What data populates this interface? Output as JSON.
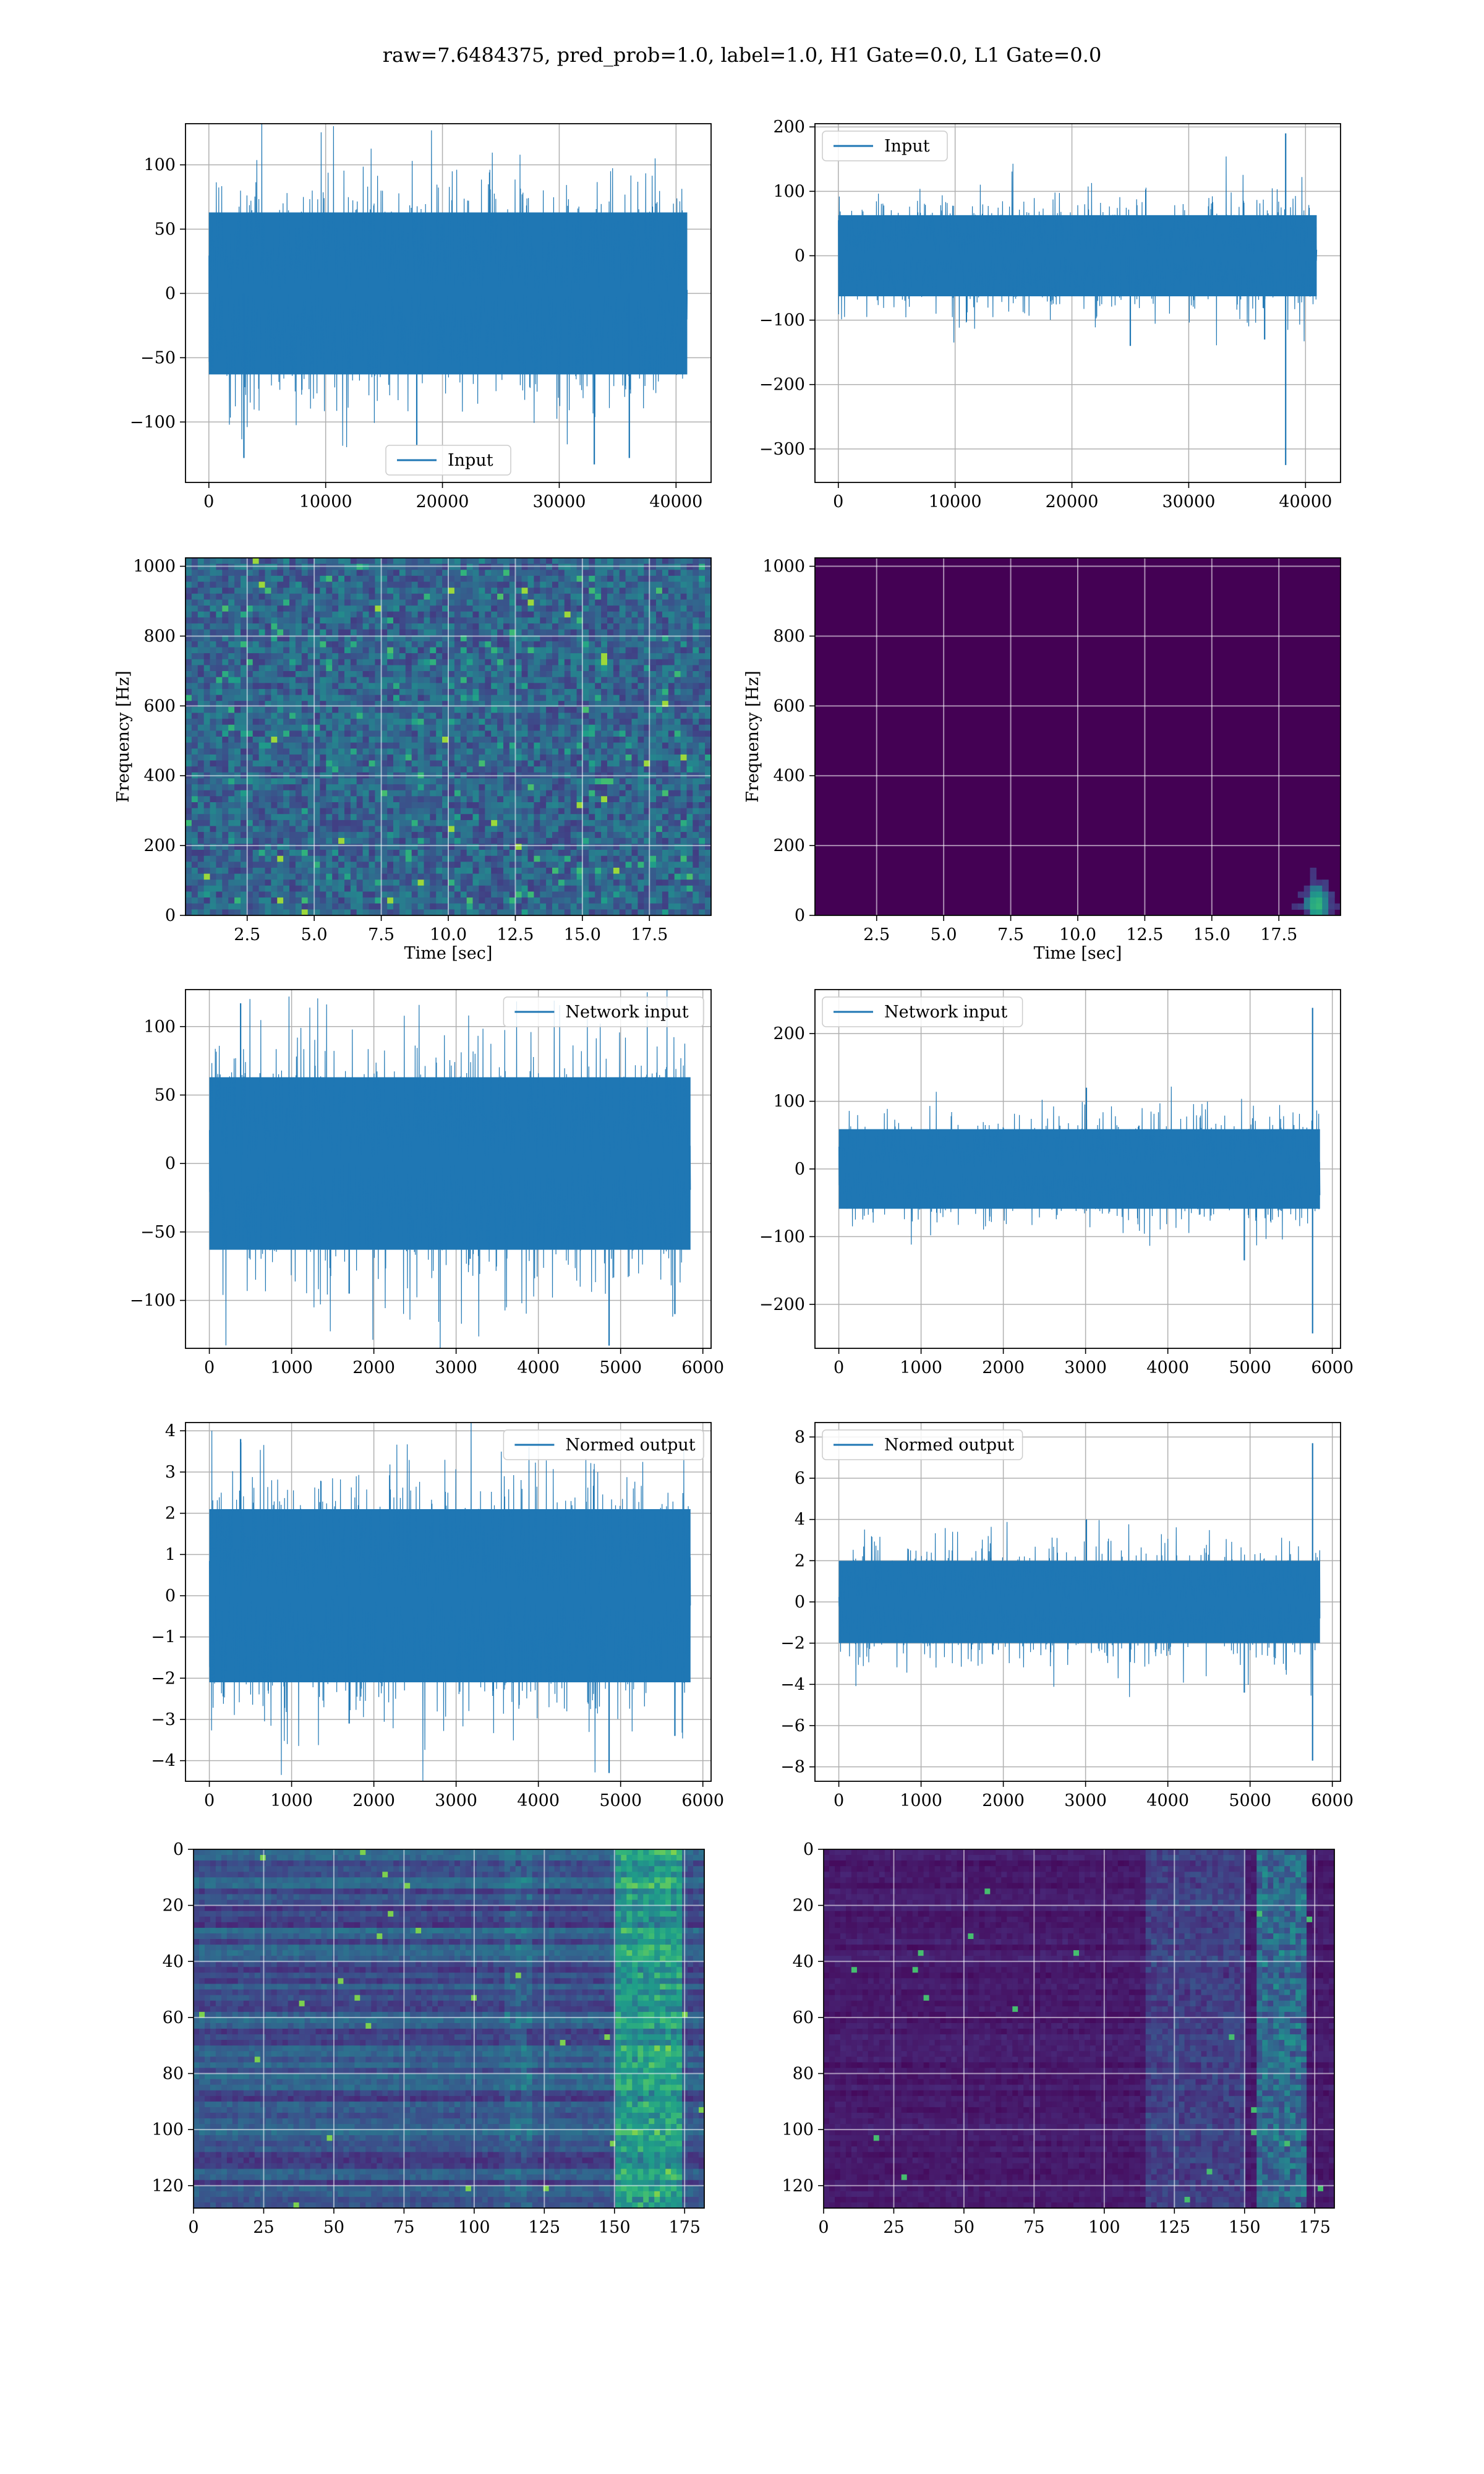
{
  "title": "raw=7.6484375, pred_prob=1.0, label=1.0, H1 Gate=0.0, L1 Gate=0.0",
  "colors": {
    "line": "#1f77b4",
    "grid": "#b0b0b0",
    "viridis_low": "#440154",
    "viridis_high": "#fde725"
  },
  "chart_data": [
    {
      "id": "r1c1",
      "type": "line",
      "legend": "Input",
      "legend_loc": "lower center",
      "xlim": [
        -2000,
        43000
      ],
      "ylim": [
        -147,
        132
      ],
      "xticks": [
        0,
        10000,
        20000,
        30000,
        40000
      ],
      "yticks": [
        -100,
        -50,
        0,
        50,
        100
      ],
      "xticklabels": [
        "0",
        "10000",
        "20000",
        "30000",
        "40000"
      ],
      "yticklabels": [
        "−100",
        "−50",
        "0",
        "50",
        "100"
      ],
      "xlabel": "",
      "ylabel": "",
      "grid": true,
      "x_range": [
        0,
        40960
      ],
      "band_mean": 0,
      "band_std": 30,
      "spikes": [
        {
          "x": 3000,
          "y": -128
        },
        {
          "x": 17800,
          "y": -118
        },
        {
          "x": 33000,
          "y": -133
        },
        {
          "x": 36000,
          "y": -128
        }
      ]
    },
    {
      "id": "r1c2",
      "type": "line",
      "legend": "Input",
      "legend_loc": "upper left",
      "xlim": [
        -2000,
        43000
      ],
      "ylim": [
        -352,
        205
      ],
      "xticks": [
        0,
        10000,
        20000,
        30000,
        40000
      ],
      "yticks": [
        -300,
        -200,
        -100,
        0,
        100,
        200
      ],
      "xticklabels": [
        "0",
        "10000",
        "20000",
        "30000",
        "40000"
      ],
      "yticklabels": [
        "−300",
        "−200",
        "−100",
        "0",
        "100",
        "200"
      ],
      "xlabel": "",
      "ylabel": "",
      "grid": true,
      "x_range": [
        0,
        40960
      ],
      "band_mean": 0,
      "band_std": 30,
      "spikes": [
        {
          "x": 38300,
          "y": 190
        },
        {
          "x": 38300,
          "y": -325
        },
        {
          "x": 25000,
          "y": -140
        },
        {
          "x": 36500,
          "y": -130
        }
      ]
    },
    {
      "id": "r2c1",
      "type": "heatmap",
      "xlim": [
        0.2,
        19.8
      ],
      "ylim": [
        0,
        1024
      ],
      "xticks": [
        2.5,
        5.0,
        7.5,
        10.0,
        12.5,
        15.0,
        17.5
      ],
      "yticks": [
        0,
        200,
        400,
        600,
        800,
        1000
      ],
      "xticklabels": [
        "2.5",
        "5.0",
        "7.5",
        "10.0",
        "12.5",
        "15.0",
        "17.5"
      ],
      "yticklabels": [
        "0",
        "200",
        "400",
        "600",
        "800",
        "1000"
      ],
      "xlabel": "Time [sec]",
      "ylabel": "Frequency [Hz]",
      "grid": true,
      "colormap": "viridis",
      "intensity": "high-noise"
    },
    {
      "id": "r2c2",
      "type": "heatmap",
      "xlim": [
        0.2,
        19.8
      ],
      "ylim": [
        0,
        1024
      ],
      "xticks": [
        2.5,
        5.0,
        7.5,
        10.0,
        12.5,
        15.0,
        17.5
      ],
      "yticks": [
        0,
        200,
        400,
        600,
        800,
        1000
      ],
      "xticklabels": [
        "2.5",
        "5.0",
        "7.5",
        "10.0",
        "12.5",
        "15.0",
        "17.5"
      ],
      "yticklabels": [
        "0",
        "200",
        "400",
        "600",
        "800",
        "1000"
      ],
      "xlabel": "Time [sec]",
      "ylabel": "Frequency [Hz]",
      "grid": true,
      "colormap": "viridis",
      "intensity": "low-noise",
      "hotspot": {
        "x": 18.8,
        "y": 40
      }
    },
    {
      "id": "r3c1",
      "type": "line",
      "legend": "Network input",
      "legend_loc": "upper right",
      "xlim": [
        -290,
        6100
      ],
      "ylim": [
        -135,
        127
      ],
      "xticks": [
        0,
        1000,
        2000,
        3000,
        4000,
        5000,
        6000
      ],
      "yticks": [
        -100,
        -50,
        0,
        50,
        100
      ],
      "xticklabels": [
        "0",
        "1000",
        "2000",
        "3000",
        "4000",
        "5000",
        "6000"
      ],
      "yticklabels": [
        "−100",
        "−50",
        "0",
        "50",
        "100"
      ],
      "xlabel": "",
      "ylabel": "",
      "grid": true,
      "x_range": [
        0,
        5850
      ],
      "band_mean": 0,
      "band_std": 30,
      "spikes": [
        {
          "x": 380,
          "y": 117
        },
        {
          "x": 4860,
          "y": -133
        },
        {
          "x": 5660,
          "y": -110
        },
        {
          "x": 1700,
          "y": -95
        }
      ]
    },
    {
      "id": "r3c2",
      "type": "line",
      "legend": "Network input",
      "legend_loc": "upper left",
      "xlim": [
        -290,
        6100
      ],
      "ylim": [
        -265,
        265
      ],
      "xticks": [
        0,
        1000,
        2000,
        3000,
        4000,
        5000,
        6000
      ],
      "yticks": [
        -200,
        -100,
        0,
        100,
        200
      ],
      "xticklabels": [
        "0",
        "1000",
        "2000",
        "3000",
        "4000",
        "5000",
        "6000"
      ],
      "yticklabels": [
        "−200",
        "−100",
        "0",
        "100",
        "200"
      ],
      "xlabel": "",
      "ylabel": "",
      "grid": true,
      "x_range": [
        0,
        5850
      ],
      "band_mean": 0,
      "band_std": 28,
      "spikes": [
        {
          "x": 5760,
          "y": 238
        },
        {
          "x": 5760,
          "y": -243
        },
        {
          "x": 3010,
          "y": 120
        },
        {
          "x": 4930,
          "y": -135
        }
      ]
    },
    {
      "id": "r4c1",
      "type": "line",
      "legend": "Normed output",
      "legend_loc": "upper right",
      "xlim": [
        -290,
        6100
      ],
      "ylim": [
        -4.5,
        4.2
      ],
      "xticks": [
        0,
        1000,
        2000,
        3000,
        4000,
        5000,
        6000
      ],
      "yticks": [
        -4,
        -3,
        -2,
        -1,
        0,
        1,
        2,
        3,
        4
      ],
      "xticklabels": [
        "0",
        "1000",
        "2000",
        "3000",
        "4000",
        "5000",
        "6000"
      ],
      "yticklabels": [
        "−4",
        "−3",
        "−2",
        "−1",
        "0",
        "1",
        "2",
        "3",
        "4"
      ],
      "xlabel": "",
      "ylabel": "",
      "grid": true,
      "x_range": [
        0,
        5850
      ],
      "band_mean": 0,
      "band_std": 1.0,
      "spikes": [
        {
          "x": 380,
          "y": 3.8
        },
        {
          "x": 4860,
          "y": -4.3
        },
        {
          "x": 5660,
          "y": -3.4
        },
        {
          "x": 1700,
          "y": -3.1
        }
      ]
    },
    {
      "id": "r4c2",
      "type": "line",
      "legend": "Normed output",
      "legend_loc": "upper left",
      "xlim": [
        -290,
        6100
      ],
      "ylim": [
        -8.7,
        8.7
      ],
      "xticks": [
        0,
        1000,
        2000,
        3000,
        4000,
        5000,
        6000
      ],
      "yticks": [
        -8,
        -6,
        -4,
        -2,
        0,
        2,
        4,
        6,
        8
      ],
      "xticklabels": [
        "0",
        "1000",
        "2000",
        "3000",
        "4000",
        "5000",
        "6000"
      ],
      "yticklabels": [
        "−8",
        "−6",
        "−4",
        "−2",
        "0",
        "2",
        "4",
        "6",
        "8"
      ],
      "xlabel": "",
      "ylabel": "",
      "grid": true,
      "x_range": [
        0,
        5850
      ],
      "band_mean": 0,
      "band_std": 0.95,
      "spikes": [
        {
          "x": 5760,
          "y": 7.7
        },
        {
          "x": 5760,
          "y": -7.7
        },
        {
          "x": 3010,
          "y": 4.0
        },
        {
          "x": 4930,
          "y": -4.4
        }
      ]
    },
    {
      "id": "r5c1",
      "type": "heatmap",
      "xlim": [
        0,
        182
      ],
      "ylim": [
        128,
        0
      ],
      "xticks": [
        0,
        25,
        50,
        75,
        100,
        125,
        150,
        175
      ],
      "yticks": [
        0,
        20,
        40,
        60,
        80,
        100,
        120
      ],
      "xticklabels": [
        "0",
        "25",
        "50",
        "75",
        "100",
        "125",
        "150",
        "175"
      ],
      "yticklabels": [
        "0",
        "20",
        "40",
        "60",
        "80",
        "100",
        "120"
      ],
      "xlabel": "",
      "ylabel": "",
      "grid": true,
      "colormap": "viridis",
      "intensity": "feature-map-A"
    },
    {
      "id": "r5c2",
      "type": "heatmap",
      "xlim": [
        0,
        182
      ],
      "ylim": [
        128,
        0
      ],
      "xticks": [
        0,
        25,
        50,
        75,
        100,
        125,
        150,
        175
      ],
      "yticks": [
        0,
        20,
        40,
        60,
        80,
        100,
        120
      ],
      "xticklabels": [
        "0",
        "25",
        "50",
        "75",
        "100",
        "125",
        "150",
        "175"
      ],
      "yticklabels": [
        "0",
        "20",
        "40",
        "60",
        "80",
        "100",
        "120"
      ],
      "xlabel": "",
      "ylabel": "",
      "grid": true,
      "colormap": "viridis",
      "intensity": "feature-map-B"
    }
  ]
}
